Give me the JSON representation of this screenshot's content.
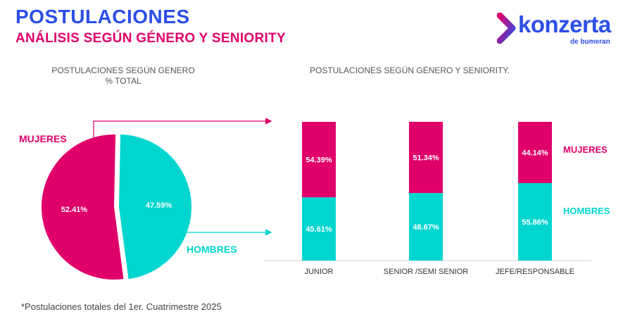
{
  "header": {
    "title": "POSTULACIONES",
    "subtitle": "ANÁLISIS SEGÚN GÉNERO Y SENIORITY"
  },
  "logo": {
    "wordmark": "konzerta",
    "tagline": "de bumeran"
  },
  "colors": {
    "mujeres": "#e0006a",
    "hombres": "#00d6cf",
    "brand": "#2b4fe6"
  },
  "chart_data": [
    {
      "type": "pie",
      "title": "POSTULACIONES SEGÚN GENERO",
      "subtitle": "% TOTAL",
      "slices": [
        {
          "name": "MUJERES",
          "value": 52.41,
          "label": "52.41%"
        },
        {
          "name": "HOMBRES",
          "value": 47.59,
          "label": "47.59%"
        }
      ]
    },
    {
      "type": "bar",
      "stacked": true,
      "title": "POSTULACIONES SEGÚN GÉNERO Y SENIORITY.",
      "categories": [
        "JUNIOR",
        "SENIOR /SEMI SENIOR",
        "JEFE/RESPONSABLE"
      ],
      "series": [
        {
          "name": "HOMBRES",
          "values": [
            45.61,
            48.67,
            55.86
          ],
          "labels": [
            "45.61%",
            "48.67%",
            "55.86%"
          ]
        },
        {
          "name": "MUJERES",
          "values": [
            54.39,
            51.34,
            44.14
          ],
          "labels": [
            "54.39%",
            "51.34%",
            "44.14%"
          ]
        }
      ],
      "ylim": [
        0,
        100
      ]
    }
  ],
  "legend": {
    "mujeres": "MUJERES",
    "hombres": "HOMBRES"
  },
  "footnote": "*Postulaciones totales del 1er. Cuatrimestre 2025"
}
